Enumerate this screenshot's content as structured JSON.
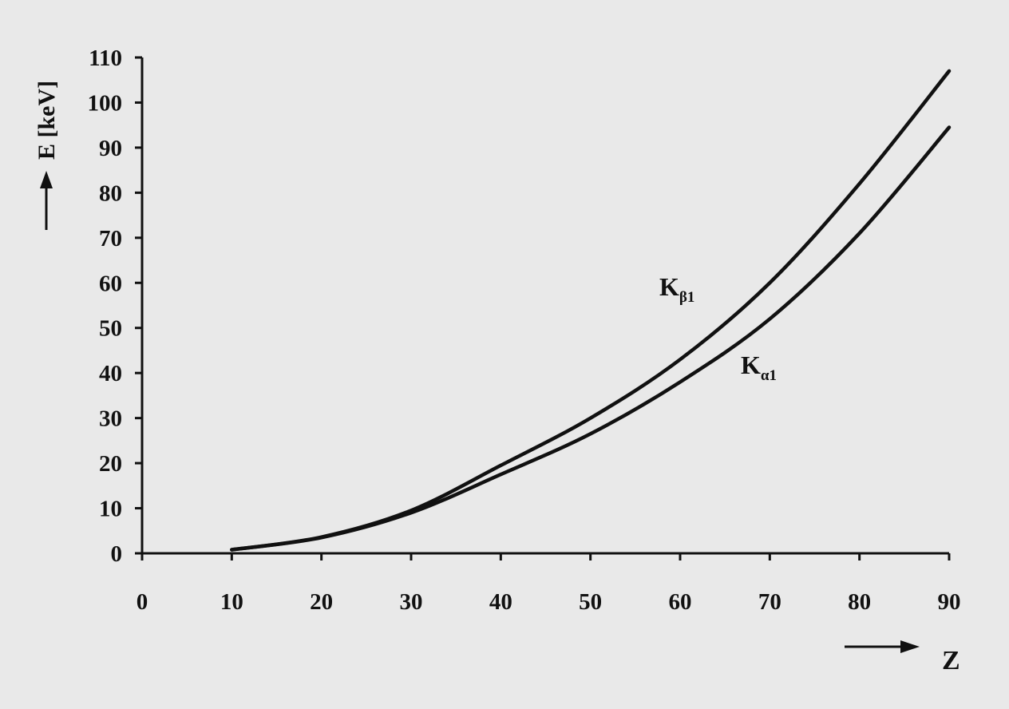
{
  "chart_data": {
    "type": "line",
    "xlabel": "Z",
    "ylabel": "E [keV]",
    "xlim": [
      0,
      90
    ],
    "ylim": [
      0,
      110
    ],
    "xticks": [
      0,
      10,
      20,
      30,
      40,
      50,
      60,
      70,
      80,
      90
    ],
    "yticks": [
      0,
      10,
      20,
      30,
      40,
      50,
      60,
      70,
      80,
      90,
      100,
      110
    ],
    "grid": false,
    "legend": "inline labels",
    "series": [
      {
        "name": "Kβ1",
        "label_main": "K",
        "label_sub": "β1",
        "color": "#111111",
        "x": [
          10,
          20,
          30,
          40,
          50,
          60,
          70,
          80,
          90
        ],
        "y": [
          0.8,
          3.6,
          9.5,
          19.5,
          30,
          43,
          60,
          82,
          107
        ]
      },
      {
        "name": "Kα1",
        "label_main": "K",
        "label_sub": "α1",
        "color": "#111111",
        "x": [
          10,
          20,
          30,
          40,
          50,
          60,
          70,
          80,
          90
        ],
        "y": [
          0.8,
          3.5,
          9.0,
          17.5,
          26.5,
          38,
          52,
          71,
          94.5
        ]
      }
    ]
  }
}
